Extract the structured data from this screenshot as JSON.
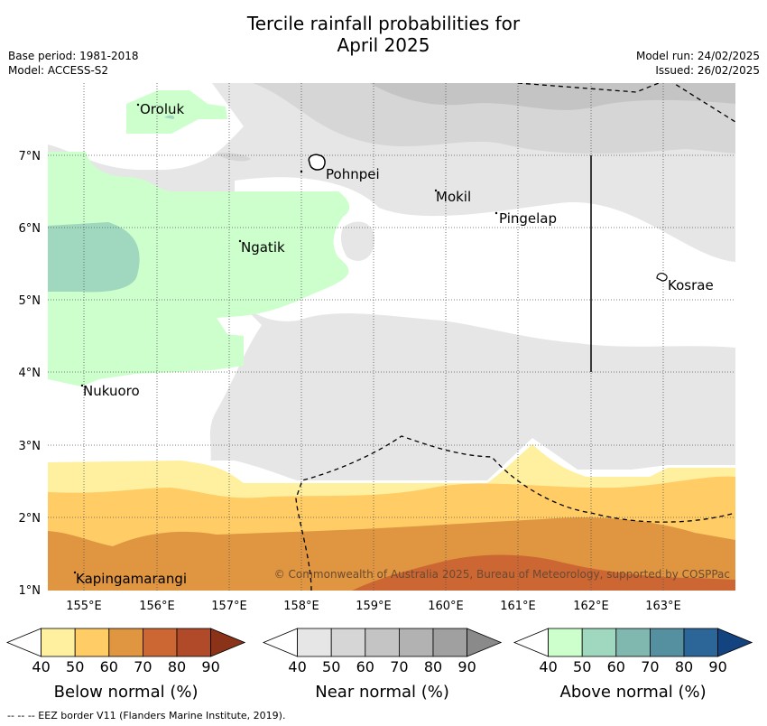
{
  "title_line1": "Tercile rainfall probabilities for",
  "title_line2": "April 2025",
  "info": {
    "base_period": "Base period: 1981-2018",
    "model": "Model: ACCESS-S2",
    "model_run": "Model run: 24/02/2025",
    "issued": "Issued: 26/02/2025"
  },
  "map": {
    "lat_labels": [
      "7°N",
      "6°N",
      "5°N",
      "4°N",
      "3°N",
      "2°N",
      "1°N"
    ],
    "lon_labels": [
      "155°E",
      "156°E",
      "157°E",
      "158°E",
      "159°E",
      "160°E",
      "161°E",
      "162°E",
      "163°E"
    ],
    "places": [
      "Oroluk",
      "Pohnpei",
      "Mokil",
      "Pingelap",
      "Ngatik",
      "Kosrae",
      "Nukuoro",
      "Kapingamarangi"
    ],
    "copyright": "© Commonwealth of Australia 2025, Bureau of Meteorology, supported by COSPPac",
    "colors": {
      "below": [
        "#fff0a0",
        "#ffcc66",
        "#e09540",
        "#cc6633",
        "#b04a28",
        "#8a3318"
      ],
      "near": [
        "#e6e6e6",
        "#d6d6d6",
        "#c4c4c4",
        "#b2b2b2",
        "#a0a0a0",
        "#8a8a8a"
      ],
      "above": [
        "#ccffcc",
        "#a0d8bf",
        "#80b8b0",
        "#5590a0",
        "#2c6699",
        "#144480"
      ]
    }
  },
  "legends": [
    {
      "label": "Below normal (%)",
      "ticks": [
        "40",
        "50",
        "60",
        "70",
        "80",
        "90"
      ]
    },
    {
      "label": "Near normal (%)",
      "ticks": [
        "40",
        "50",
        "60",
        "70",
        "80",
        "90"
      ]
    },
    {
      "label": "Above normal (%)",
      "ticks": [
        "40",
        "50",
        "60",
        "70",
        "80",
        "90"
      ]
    }
  ],
  "footer": "--  --  -- EEZ border V11 (Flanders Marine Institute, 2019)."
}
